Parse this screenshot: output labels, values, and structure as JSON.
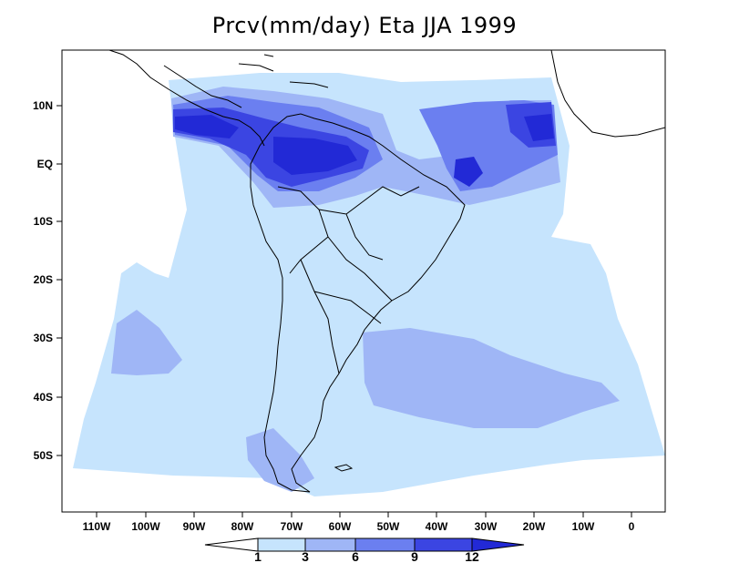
{
  "title": "Prcv(mm/day) Eta JJA 1999",
  "variable": "Prcv",
  "units": "mm/day",
  "model": "Eta",
  "season": "JJA",
  "year": "1999",
  "lat_ticks": [
    "10N",
    "EQ",
    "10S",
    "20S",
    "30S",
    "40S",
    "50S"
  ],
  "lon_ticks": [
    "110W",
    "100W",
    "90W",
    "80W",
    "70W",
    "60W",
    "50W",
    "40W",
    "30W",
    "20W",
    "10W",
    "0"
  ],
  "colorbar": {
    "levels": [
      "1",
      "3",
      "6",
      "9",
      "12"
    ],
    "colors": [
      "#ffffff",
      "#c6e4fd",
      "#9fb6f6",
      "#6b7ff0",
      "#3b45e2",
      "#2229d6"
    ]
  },
  "colors": {
    "level_1_3": "#c6e4fd",
    "level_3_6": "#9fb6f6",
    "level_6_9": "#6b7ff0",
    "level_9_12": "#3b45e2",
    "level_12_plus": "#2229d6",
    "coastline": "#000000"
  }
}
